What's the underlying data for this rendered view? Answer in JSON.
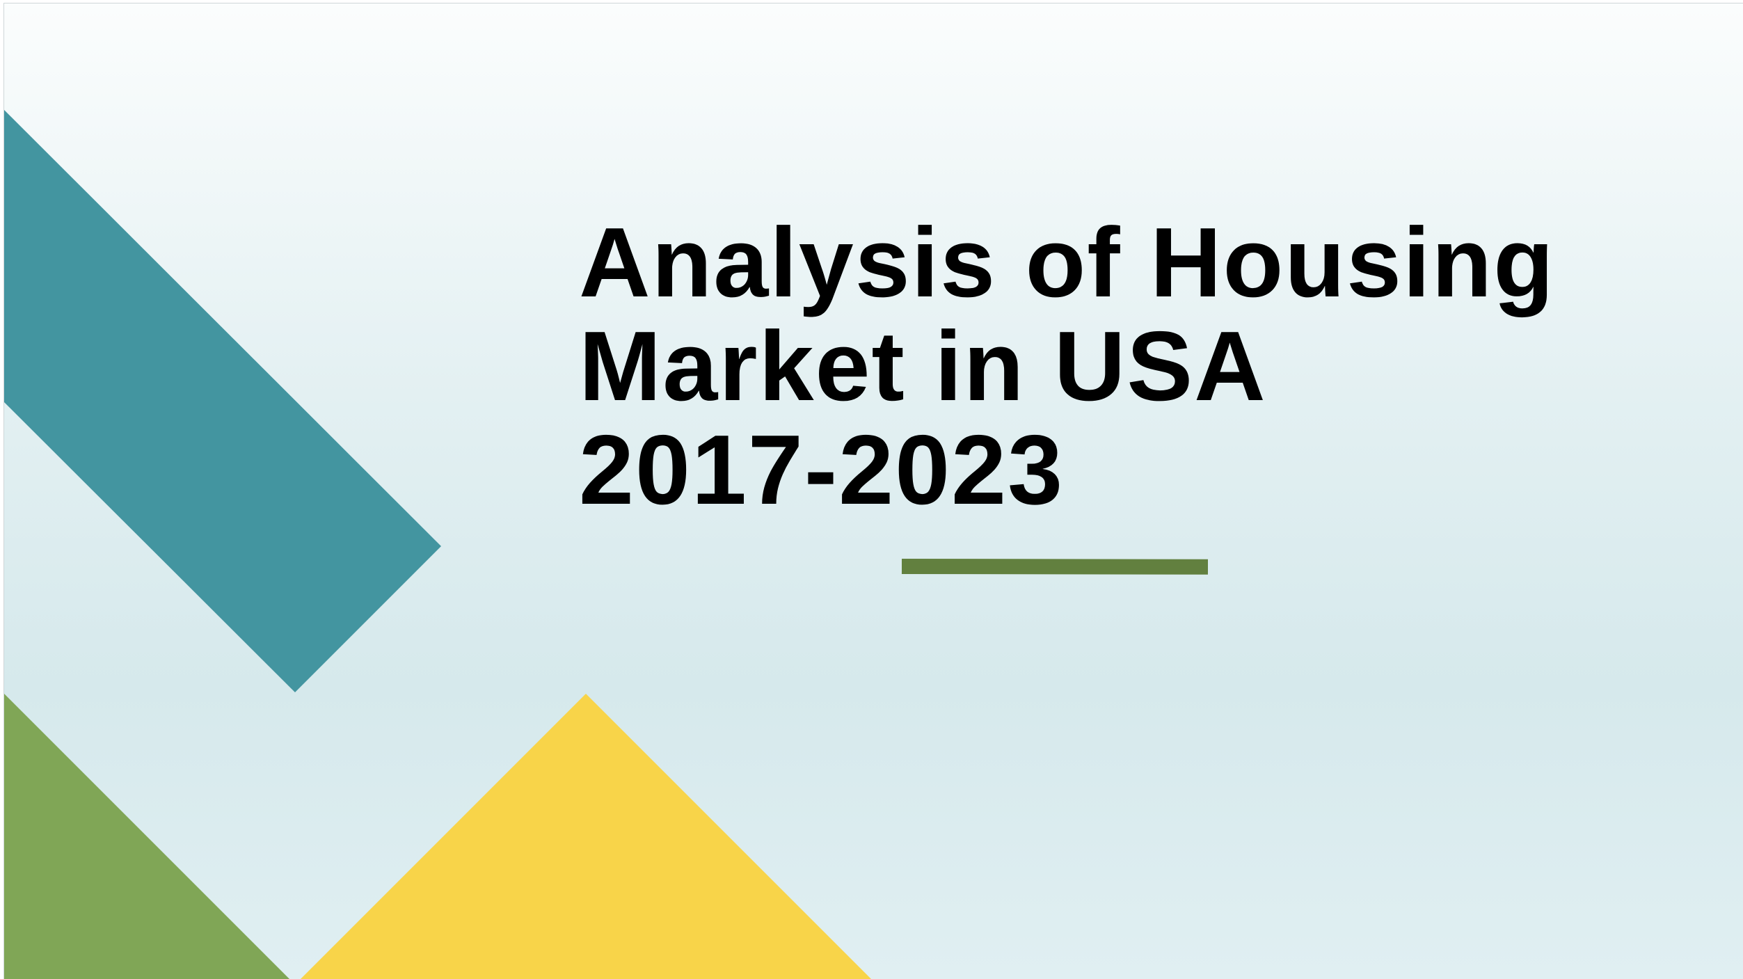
{
  "slide": {
    "title": "Analysis of  Housing\nMarket in USA\n2017-2023"
  },
  "colors": {
    "background_top": "#fbfdfd",
    "background_bottom": "#d6e9ec",
    "teal_band": "#4395a0",
    "green_triangle": "#80a656",
    "yellow_triangle": "#f8d449",
    "accent_line": "#62803f",
    "title_text": "#000000"
  }
}
